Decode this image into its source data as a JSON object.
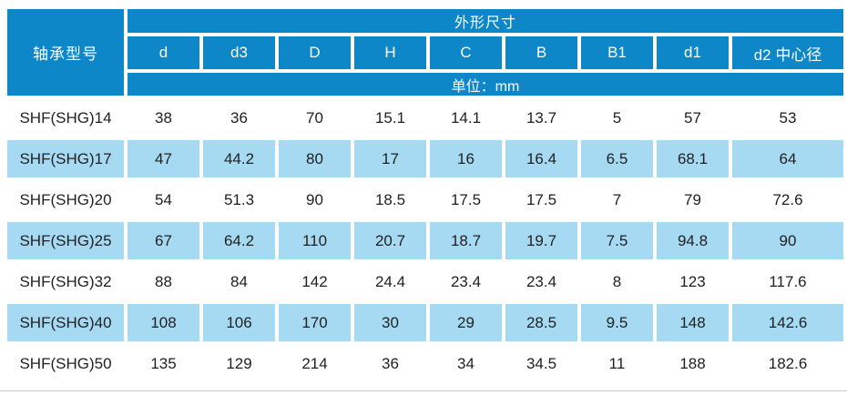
{
  "colors": {
    "header_bg": "#0d87c8",
    "row_alt_bg": "#a6daf3",
    "header_text": "#ffffff",
    "data_text": "#212121",
    "bottom_rule": "#cccccc",
    "page_bg": "#ffffff"
  },
  "table": {
    "model_header": "轴承型号",
    "group_header": "外形尺寸",
    "unit_label": "单位：mm",
    "columns": [
      "d",
      "d3",
      "D",
      "H",
      "C",
      "B",
      "B1",
      "d1",
      "d2 中心径"
    ],
    "rows": [
      {
        "model": "SHF(SHG)14",
        "values": [
          "38",
          "36",
          "70",
          "15.1",
          "14.1",
          "13.7",
          "5",
          "57",
          "53"
        ]
      },
      {
        "model": "SHF(SHG)17",
        "values": [
          "47",
          "44.2",
          "80",
          "17",
          "16",
          "16.4",
          "6.5",
          "68.1",
          "64"
        ]
      },
      {
        "model": "SHF(SHG)20",
        "values": [
          "54",
          "51.3",
          "90",
          "18.5",
          "17.5",
          "17.5",
          "7",
          "79",
          "72.6"
        ]
      },
      {
        "model": "SHF(SHG)25",
        "values": [
          "67",
          "64.2",
          "110",
          "20.7",
          "18.7",
          "19.7",
          "7.5",
          "94.8",
          "90"
        ]
      },
      {
        "model": "SHF(SHG)32",
        "values": [
          "88",
          "84",
          "142",
          "24.4",
          "23.4",
          "23.4",
          "8",
          "123",
          "117.6"
        ]
      },
      {
        "model": "SHF(SHG)40",
        "values": [
          "108",
          "106",
          "170",
          "30",
          "29",
          "28.5",
          "9.5",
          "148",
          "142.6"
        ]
      },
      {
        "model": "SHF(SHG)50",
        "values": [
          "135",
          "129",
          "214",
          "36",
          "34",
          "34.5",
          "11",
          "188",
          "182.6"
        ]
      }
    ],
    "layout": {
      "model_col_width": 128,
      "value_col_width": 79,
      "last_col_width": 122
    }
  }
}
